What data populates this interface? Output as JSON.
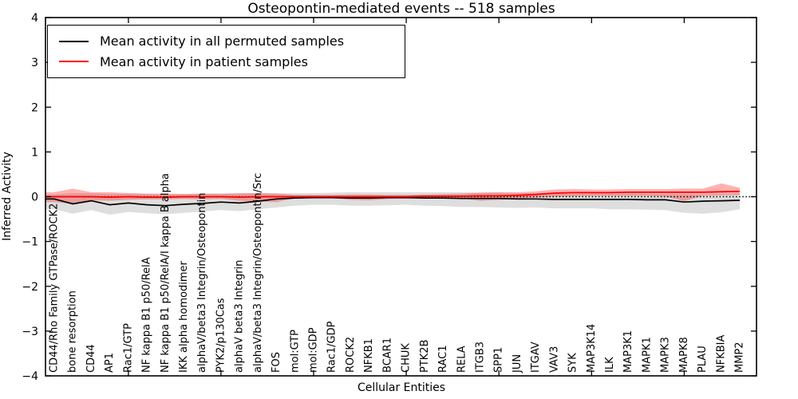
{
  "chart_data": {
    "type": "line",
    "title": "Osteopontin-mediated events -- 518 samples",
    "xlabel": "Cellular Entities",
    "ylabel": "Inferred Activity",
    "ylim": [
      -4,
      4
    ],
    "yticks": [
      4,
      3,
      2,
      1,
      0,
      -1,
      -2,
      -3,
      -4
    ],
    "ytick_labels": [
      "4",
      "3",
      "2",
      "1",
      "0",
      "−1",
      "−2",
      "−3",
      "−4"
    ],
    "grid": false,
    "legend_position": "upper left",
    "background_color": "#ffffff",
    "frame_color": "#000000",
    "categories": [
      "CD44/Rho Family GTPase/ROCK2",
      "bone resorption",
      "CD44",
      "AP1",
      "Rac1/GTP",
      "NF kappa B1 p50/RelA",
      "NF kappa B1 p50/RelA/I kappa B alpha",
      "IKK alpha homodimer",
      "alphaV/beta3 Integrin/Osteopontin",
      "PYK2/p130Cas",
      "alphaV beta3 Integrin",
      "alphaV/beta3 Integrin/Osteopontin/Src",
      "FOS",
      "mol:GTP",
      "mol:GDP",
      "Rac1/GDP",
      "ROCK2",
      "NFKB1",
      "BCAR1",
      "CHUK",
      "PTK2B",
      "RAC1",
      "RELA",
      "ITGB3",
      "SPP1",
      "JUN",
      "ITGAV",
      "VAV3",
      "SYK",
      "MAP3K14",
      "ILK",
      "MAP3K1",
      "MAPK1",
      "MAPK3",
      "MAPK8",
      "PLAU",
      "NFKBIA",
      "MMP2"
    ],
    "series": [
      {
        "name": "Mean activity in all permuted samples",
        "color": "#000000",
        "band_color": "rgba(0,0,0,0.13)",
        "values": [
          -0.05,
          -0.16,
          -0.09,
          -0.18,
          -0.14,
          -0.18,
          -0.2,
          -0.17,
          -0.15,
          -0.12,
          -0.14,
          -0.1,
          -0.05,
          -0.03,
          -0.02,
          -0.02,
          -0.03,
          -0.03,
          -0.02,
          -0.02,
          -0.03,
          -0.03,
          -0.04,
          -0.04,
          -0.04,
          -0.05,
          -0.05,
          -0.06,
          -0.06,
          -0.06,
          -0.06,
          -0.06,
          -0.07,
          -0.07,
          -0.12,
          -0.1,
          -0.09,
          -0.08
        ],
        "band_low": [
          -0.28,
          -0.38,
          -0.3,
          -0.4,
          -0.34,
          -0.37,
          -0.39,
          -0.36,
          -0.33,
          -0.3,
          -0.32,
          -0.28,
          -0.24,
          -0.2,
          -0.18,
          -0.18,
          -0.2,
          -0.2,
          -0.19,
          -0.18,
          -0.2,
          -0.21,
          -0.23,
          -0.23,
          -0.24,
          -0.25,
          -0.24,
          -0.26,
          -0.26,
          -0.26,
          -0.28,
          -0.28,
          -0.29,
          -0.3,
          -0.36,
          -0.38,
          -0.35,
          -0.28
        ],
        "band_high": [
          0.05,
          0.08,
          0.08,
          0.06,
          0.07,
          0.06,
          0.05,
          0.06,
          0.07,
          0.08,
          0.07,
          0.08,
          0.08,
          0.08,
          0.08,
          0.09,
          0.1,
          0.1,
          0.1,
          0.1,
          0.1,
          0.1,
          0.1,
          0.09,
          0.09,
          0.08,
          0.08,
          0.08,
          0.07,
          0.07,
          0.07,
          0.07,
          0.06,
          0.06,
          0.06,
          0.05,
          0.06,
          0.08
        ]
      },
      {
        "name": "Mean activity in patient samples",
        "color": "#ff0000",
        "band_color": "rgba(255,0,0,0.30)",
        "values": [
          0.0,
          0.0,
          0.0,
          -0.01,
          0.0,
          -0.01,
          -0.01,
          0.0,
          0.0,
          0.0,
          -0.01,
          0.0,
          0.0,
          0.0,
          0.0,
          0.0,
          0.0,
          0.0,
          0.0,
          0.0,
          0.01,
          0.01,
          0.01,
          0.02,
          0.02,
          0.03,
          0.05,
          0.08,
          0.09,
          0.09,
          0.09,
          0.1,
          0.1,
          0.1,
          0.1,
          0.1,
          0.11,
          0.12
        ],
        "band_low": [
          -0.12,
          -0.16,
          -0.08,
          -0.09,
          -0.07,
          -0.06,
          -0.06,
          -0.05,
          -0.06,
          -0.05,
          -0.09,
          -0.11,
          -0.12,
          -0.03,
          -0.03,
          -0.03,
          -0.07,
          -0.08,
          -0.05,
          -0.04,
          -0.03,
          -0.03,
          -0.04,
          -0.09,
          -0.07,
          -0.04,
          -0.02,
          0.0,
          0.01,
          0.02,
          0.02,
          0.02,
          0.02,
          0.0,
          -0.1,
          0.02,
          0.03,
          0.04
        ],
        "band_high": [
          0.1,
          0.18,
          0.1,
          0.1,
          0.08,
          0.07,
          0.07,
          0.06,
          0.07,
          0.06,
          0.08,
          0.08,
          0.07,
          0.04,
          0.04,
          0.04,
          0.05,
          0.05,
          0.04,
          0.04,
          0.05,
          0.06,
          0.07,
          0.09,
          0.1,
          0.1,
          0.12,
          0.16,
          0.17,
          0.16,
          0.16,
          0.17,
          0.17,
          0.17,
          0.18,
          0.18,
          0.3,
          0.2
        ]
      }
    ],
    "zero_line": {
      "y": 0,
      "style": "dotted",
      "color": "#000000"
    }
  }
}
